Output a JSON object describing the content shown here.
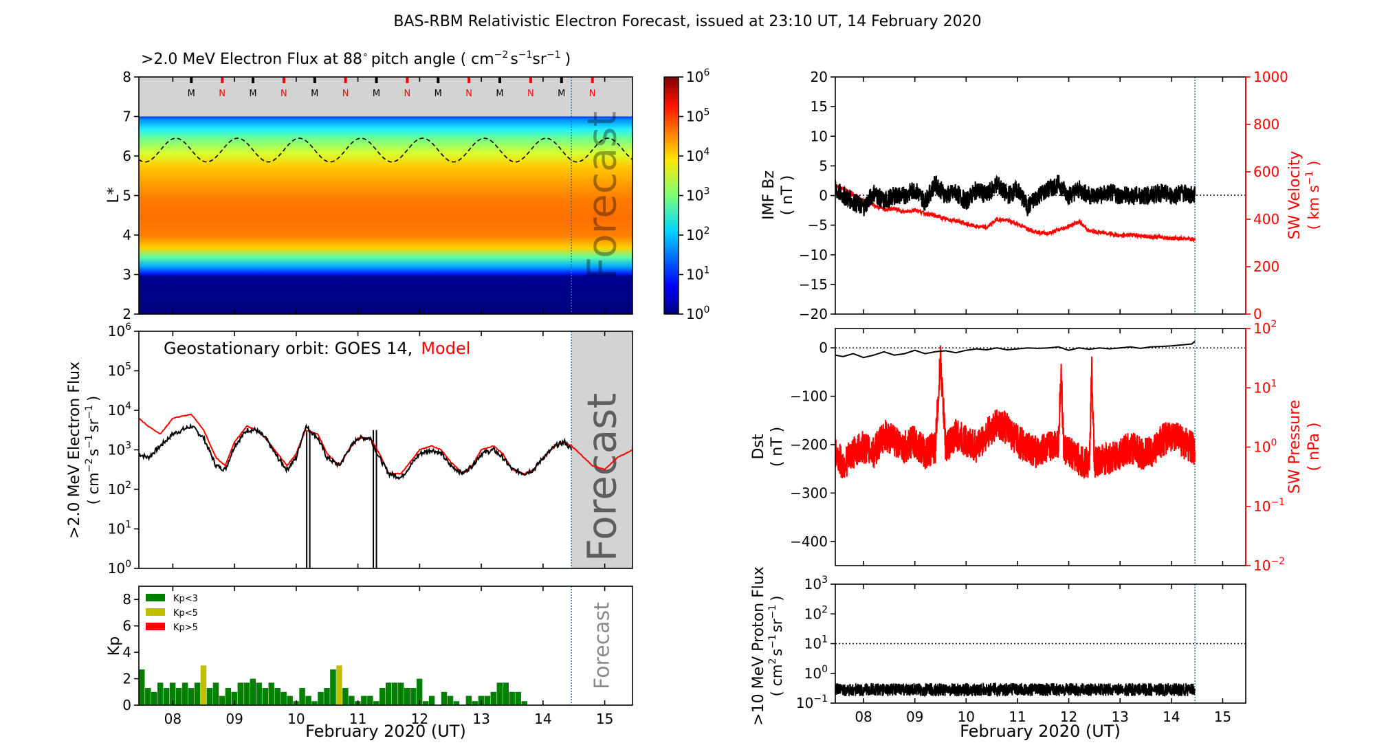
{
  "figure": {
    "title": "BAS-RBM Relativistic Electron Forecast, issued at 23:10 UT, 14 February 2020"
  },
  "colors": {
    "model": "#ff0000",
    "goes": "#000000",
    "kp_low": "#008000",
    "kp_mid": "#bfbf00",
    "kp_high": "#ff0000",
    "forecast_bg": "#d3d3d3",
    "forecast_line": "#1f77b4"
  },
  "chart_data": [
    {
      "id": "flux_map",
      "type": "heatmap",
      "title_main": ">2.0 MeV Electron Flux at 88",
      "title_unit": "pitch angle ( cm",
      "title_exps": [
        "−2",
        "−1",
        "−1"
      ],
      "title_parts": [
        "s",
        "sr",
        ")"
      ],
      "degree": "∘",
      "ylabel": "L*",
      "xlim": [
        7.45,
        15.45
      ],
      "ylim": [
        2,
        8
      ],
      "yticks": [
        "2",
        "3",
        "4",
        "5",
        "6",
        "7",
        "8"
      ],
      "forecast_start": 14.46,
      "forecast_label": "Forecast",
      "apogee_markers": [
        {
          "x": 8.3,
          "label": "M"
        },
        {
          "x": 8.8,
          "label": "N"
        },
        {
          "x": 9.3,
          "label": "M"
        },
        {
          "x": 9.8,
          "label": "N"
        },
        {
          "x": 10.3,
          "label": "M"
        },
        {
          "x": 10.8,
          "label": "N"
        },
        {
          "x": 11.3,
          "label": "M"
        },
        {
          "x": 11.8,
          "label": "N"
        },
        {
          "x": 12.3,
          "label": "M"
        },
        {
          "x": 12.8,
          "label": "N"
        },
        {
          "x": 13.3,
          "label": "M"
        },
        {
          "x": 13.8,
          "label": "N"
        },
        {
          "x": 14.3,
          "label": "M"
        },
        {
          "x": 14.8,
          "label": "N"
        }
      ],
      "geo_orbit_L": {
        "mean": 6.15,
        "amplitude": 0.3,
        "period_days": 1.0
      },
      "flux_profile_by_L": [
        {
          "L": 2.0,
          "log_flux": 0
        },
        {
          "L": 3.0,
          "log_flux": 0
        },
        {
          "L": 3.15,
          "log_flux": 1.6
        },
        {
          "L": 3.3,
          "log_flux": 2.6
        },
        {
          "L": 3.5,
          "log_flux": 3.8
        },
        {
          "L": 3.8,
          "log_flux": 4.4
        },
        {
          "L": 4.2,
          "log_flux": 4.6
        },
        {
          "L": 4.8,
          "log_flux": 4.6
        },
        {
          "L": 5.2,
          "log_flux": 4.4
        },
        {
          "L": 5.5,
          "log_flux": 4.1
        },
        {
          "L": 5.8,
          "log_flux": 3.8
        },
        {
          "L": 6.2,
          "log_flux": 3.3
        },
        {
          "L": 6.6,
          "log_flux": 2.6
        },
        {
          "L": 6.9,
          "log_flux": 1.6
        },
        {
          "L": 7.0,
          "log_flux": 1.0
        }
      ]
    },
    {
      "id": "colorbar",
      "type": "colorbar",
      "range_log": [
        0,
        6
      ],
      "ticks": [
        "10^0",
        "10^1",
        "10^2",
        "10^3",
        "10^4",
        "10^5",
        "10^6"
      ]
    },
    {
      "id": "geo_flux",
      "type": "line",
      "title_black": "Geostationary orbit:   GOES 14,",
      "title_red": "Model",
      "ylabel": ">2.0 MeV Electron Flux",
      "ylabel_unit": "( cm",
      "ylabel_exps": [
        "−2",
        "−1",
        "−1"
      ],
      "ylabel_parts": [
        "s",
        "sr",
        ")"
      ],
      "ylog_range": [
        0,
        6
      ],
      "yticks": [
        "10^0",
        "10^1",
        "10^2",
        "10^3",
        "10^4",
        "10^5",
        "10^6"
      ],
      "xlim": [
        7.45,
        15.45
      ],
      "forecast_start": 14.46,
      "forecast_label": "Forecast",
      "series": [
        {
          "name": "GOES 14",
          "color": "#000000",
          "x": [
            7.45,
            7.6,
            7.8,
            8.0,
            8.3,
            8.5,
            8.7,
            8.85,
            9.0,
            9.2,
            9.35,
            9.5,
            9.7,
            9.85,
            10.0,
            10.15,
            10.35,
            10.5,
            10.7,
            10.85,
            11.0,
            11.2,
            11.35,
            11.5,
            11.7,
            11.85,
            12.0,
            12.2,
            12.35,
            12.5,
            12.7,
            12.85,
            13.0,
            13.2,
            13.35,
            13.5,
            13.7,
            13.85,
            14.0,
            14.2,
            14.35,
            14.46
          ],
          "log_y": [
            2.9,
            2.8,
            3.1,
            3.4,
            3.6,
            3.3,
            2.6,
            2.5,
            3.1,
            3.5,
            3.5,
            3.3,
            2.8,
            2.5,
            2.8,
            3.6,
            3.3,
            2.8,
            2.6,
            3.0,
            3.3,
            3.3,
            2.8,
            2.4,
            2.3,
            2.6,
            2.9,
            3.0,
            2.9,
            2.6,
            2.4,
            2.6,
            2.9,
            3.0,
            2.8,
            2.5,
            2.4,
            2.5,
            2.8,
            3.1,
            3.2,
            3.0
          ]
        },
        {
          "name": "Model",
          "color": "#ff0000",
          "x": [
            7.45,
            7.6,
            7.8,
            8.0,
            8.3,
            8.5,
            8.7,
            8.85,
            9.0,
            9.2,
            9.35,
            9.5,
            9.7,
            9.85,
            10.0,
            10.15,
            10.35,
            10.5,
            10.7,
            10.85,
            11.0,
            11.2,
            11.35,
            11.5,
            11.7,
            11.85,
            12.0,
            12.2,
            12.35,
            12.5,
            12.7,
            12.85,
            13.0,
            13.2,
            13.35,
            13.5,
            13.7,
            13.85,
            14.0,
            14.2,
            14.35,
            14.46,
            14.6,
            14.8,
            15.0,
            15.2,
            15.45
          ],
          "log_y": [
            3.8,
            3.6,
            3.4,
            3.8,
            3.9,
            3.5,
            2.8,
            2.6,
            3.2,
            3.6,
            3.5,
            3.3,
            2.9,
            2.6,
            2.9,
            3.5,
            3.4,
            2.9,
            2.6,
            3.0,
            3.3,
            3.3,
            2.9,
            2.4,
            2.4,
            2.7,
            3.0,
            3.1,
            3.0,
            2.7,
            2.4,
            2.6,
            3.0,
            3.1,
            2.9,
            2.5,
            2.4,
            2.5,
            2.8,
            3.1,
            3.2,
            3.1,
            2.9,
            2.6,
            2.5,
            2.8,
            3.0
          ]
        }
      ],
      "dropouts": [
        {
          "x0": 10.17,
          "x1": 10.22
        },
        {
          "x0": 11.25,
          "x1": 11.3
        }
      ]
    },
    {
      "id": "kp",
      "type": "bar",
      "ylabel": "Kp",
      "ylim": [
        0,
        9
      ],
      "yticks": [
        "0",
        "2",
        "4",
        "6",
        "8"
      ],
      "xlim": [
        7.45,
        15.45
      ],
      "xlabel": "February 2020 (UT)",
      "xticks": [
        "08",
        "09",
        "10",
        "11",
        "12",
        "13",
        "14",
        "15"
      ],
      "forecast_start": 14.46,
      "forecast_label": "Forecast",
      "legend": [
        "Kp<3",
        "Kp<5",
        "Kp>5"
      ],
      "bar_width_days": 0.1,
      "times": [
        7.5,
        7.6,
        7.7,
        7.8,
        7.9,
        8.0,
        8.1,
        8.2,
        8.3,
        8.4,
        8.5,
        8.6,
        8.7,
        8.8,
        8.9,
        9.0,
        9.1,
        9.2,
        9.3,
        9.4,
        9.5,
        9.6,
        9.7,
        9.8,
        9.9,
        10.0,
        10.1,
        10.2,
        10.3,
        10.4,
        10.5,
        10.6,
        10.7,
        10.8,
        10.9,
        11.0,
        11.1,
        11.2,
        11.3,
        11.4,
        11.5,
        11.6,
        11.7,
        11.8,
        11.9,
        12.0,
        12.1,
        12.2,
        12.3,
        12.4,
        12.5,
        12.6,
        12.7,
        12.8,
        12.9,
        13.0,
        13.1,
        13.2,
        13.3,
        13.4,
        13.5,
        13.6,
        13.7,
        13.8,
        13.9,
        14.0,
        14.1,
        14.2,
        14.3,
        14.4
      ],
      "values": [
        2.7,
        1.3,
        1.0,
        1.7,
        1.3,
        1.7,
        1.3,
        1.7,
        1.3,
        1.7,
        3.0,
        1.3,
        1.7,
        0.7,
        1.3,
        1.0,
        1.7,
        1.7,
        2.0,
        1.7,
        1.3,
        1.7,
        1.3,
        1.0,
        0.7,
        0.3,
        1.3,
        0.7,
        0.3,
        1.0,
        1.3,
        2.7,
        3.0,
        1.3,
        0.7,
        0.3,
        0.7,
        0.7,
        0.3,
        1.3,
        1.7,
        1.7,
        1.7,
        1.3,
        1.3,
        2.0,
        0.3,
        0.7,
        0,
        1.0,
        0.7,
        0.3,
        0,
        0.7,
        0.3,
        0.7,
        0.7,
        1.0,
        1.7,
        1.7,
        1.0,
        1.0,
        0.3,
        0,
        0,
        0,
        0,
        0,
        0,
        0
      ]
    },
    {
      "id": "imf_sw",
      "type": "line",
      "ylabel_left": [
        "IMF Bz",
        "( nT )"
      ],
      "ylim_left": [
        -20,
        20
      ],
      "yticks_left": [
        "−20",
        "−15",
        "−10",
        "−5",
        "0",
        "5",
        "10",
        "15",
        "20"
      ],
      "ylabel_right": [
        "SW Velocity",
        "( km s",
        "−1",
        " )"
      ],
      "ylim_right": [
        0,
        1000
      ],
      "yticks_right": [
        "0",
        "200",
        "400",
        "600",
        "800",
        "1000"
      ],
      "xlim": [
        7.45,
        15.45
      ],
      "forecast_start": 14.46,
      "series": [
        {
          "name": "IMF Bz",
          "color": "#000000",
          "x": [
            7.45,
            7.6,
            7.8,
            8.0,
            8.2,
            8.4,
            8.6,
            8.8,
            9.0,
            9.2,
            9.4,
            9.6,
            9.8,
            10.0,
            10.2,
            10.4,
            10.6,
            10.8,
            11.0,
            11.2,
            11.4,
            11.6,
            11.8,
            12.0,
            12.2,
            12.4,
            12.6,
            12.8,
            13.0,
            13.2,
            13.4,
            13.6,
            13.8,
            14.0,
            14.2,
            14.4,
            14.46
          ],
          "y": [
            1,
            0,
            -1,
            -2,
            0.5,
            -1,
            0,
            0,
            1,
            -1,
            2,
            0,
            0.5,
            -1,
            1,
            0,
            2,
            0,
            1,
            -2,
            0,
            1,
            2,
            0,
            1,
            0,
            0,
            0.5,
            0,
            0,
            0,
            0,
            0.5,
            0,
            0.5,
            0,
            0
          ]
        },
        {
          "name": "SW Velocity",
          "color": "#ff0000",
          "x": [
            7.45,
            7.6,
            7.8,
            8.0,
            8.2,
            8.4,
            8.6,
            8.8,
            9.0,
            9.2,
            9.4,
            9.6,
            9.8,
            10.0,
            10.2,
            10.4,
            10.6,
            10.8,
            11.0,
            11.2,
            11.4,
            11.6,
            11.8,
            12.0,
            12.2,
            12.4,
            12.6,
            12.8,
            13.0,
            13.2,
            13.4,
            13.6,
            13.8,
            14.0,
            14.2,
            14.4,
            14.46
          ],
          "y": [
            545,
            530,
            505,
            475,
            460,
            440,
            445,
            430,
            440,
            425,
            415,
            400,
            395,
            380,
            370,
            365,
            400,
            395,
            380,
            360,
            345,
            340,
            355,
            370,
            390,
            350,
            345,
            340,
            330,
            335,
            330,
            325,
            325,
            320,
            320,
            315,
            320
          ]
        }
      ]
    },
    {
      "id": "dst_pressure",
      "type": "line",
      "ylabel_left": [
        "Dst",
        "( nT )"
      ],
      "ylim_left": [
        -450,
        40
      ],
      "yticks_left": [
        "−400",
        "−300",
        "−200",
        "−100",
        "0"
      ],
      "ylabel_right": [
        "SW Pressure",
        "( nPa )"
      ],
      "ylog_right": [
        -2,
        2
      ],
      "yticks_right": [
        "10^−2",
        "10^−1",
        "10^0",
        "10^1",
        "10^2"
      ],
      "xlim": [
        7.45,
        15.45
      ],
      "forecast_start": 14.46,
      "series": [
        {
          "name": "Dst",
          "color": "#000000",
          "x": [
            7.45,
            7.6,
            7.8,
            8.0,
            8.2,
            8.4,
            8.6,
            8.8,
            9.0,
            9.2,
            9.4,
            9.6,
            9.8,
            10.0,
            10.2,
            10.4,
            10.6,
            10.8,
            11.0,
            11.2,
            11.4,
            11.6,
            11.8,
            12.0,
            12.2,
            12.4,
            12.6,
            12.8,
            13.0,
            13.2,
            13.4,
            13.6,
            13.8,
            14.0,
            14.2,
            14.4,
            14.46
          ],
          "y": [
            -15,
            -18,
            -12,
            -20,
            -15,
            -8,
            -15,
            -12,
            -5,
            -12,
            -8,
            -6,
            -10,
            -5,
            -2,
            -4,
            0,
            -4,
            -2,
            0,
            -1,
            0,
            2,
            -5,
            0,
            -3,
            0,
            -2,
            0,
            2,
            -1,
            2,
            3,
            4,
            6,
            8,
            14
          ]
        },
        {
          "name": "SW Pressure",
          "color": "#ff0000",
          "x": [
            7.45,
            7.6,
            7.8,
            8.0,
            8.2,
            8.4,
            8.6,
            8.8,
            9.0,
            9.2,
            9.4,
            9.5,
            9.6,
            9.8,
            10.0,
            10.2,
            10.4,
            10.6,
            10.8,
            11.0,
            11.2,
            11.4,
            11.6,
            11.8,
            11.85,
            11.9,
            12.0,
            12.2,
            12.4,
            12.45,
            12.5,
            12.6,
            12.8,
            13.0,
            13.2,
            13.4,
            13.6,
            13.8,
            14.0,
            14.2,
            14.4,
            14.46
          ],
          "log_y": [
            -0.1,
            -0.3,
            -0.1,
            0.0,
            -0.1,
            0.2,
            0.1,
            0.0,
            0.1,
            -0.1,
            0.0,
            1.5,
            0.0,
            0.2,
            0.1,
            0.0,
            0.2,
            0.4,
            0.3,
            0.1,
            0.0,
            -0.1,
            0.0,
            0.1,
            1.3,
            0.0,
            -0.1,
            -0.2,
            -0.3,
            1.3,
            -0.3,
            -0.2,
            -0.2,
            -0.1,
            0.0,
            -0.1,
            -0.1,
            0.1,
            0.2,
            0.1,
            0.0,
            -0.1
          ]
        }
      ]
    },
    {
      "id": "proton_flux",
      "type": "line",
      "ylabel": ">10 MeV Proton Flux",
      "ylabel_unit": "( cm",
      "ylabel_exps": [
        "2",
        "−1",
        "−1"
      ],
      "ylabel_parts": [
        "s",
        "sr",
        ")"
      ],
      "ylog_range": [
        -1,
        3
      ],
      "yticks": [
        "10^−1",
        "10^0",
        "10^1",
        "10^2",
        "10^3"
      ],
      "threshold_log": 1,
      "xlim": [
        7.45,
        15.45
      ],
      "xlabel": "February 2020 (UT)",
      "xticks": [
        "08",
        "09",
        "10",
        "11",
        "12",
        "13",
        "14",
        "15"
      ],
      "forecast_start": 14.46,
      "series": [
        {
          "name": "Proton Flux",
          "color": "#000000",
          "x": [
            7.45,
            14.46
          ],
          "log_y": [
            -0.55,
            -0.55
          ]
        }
      ]
    }
  ]
}
